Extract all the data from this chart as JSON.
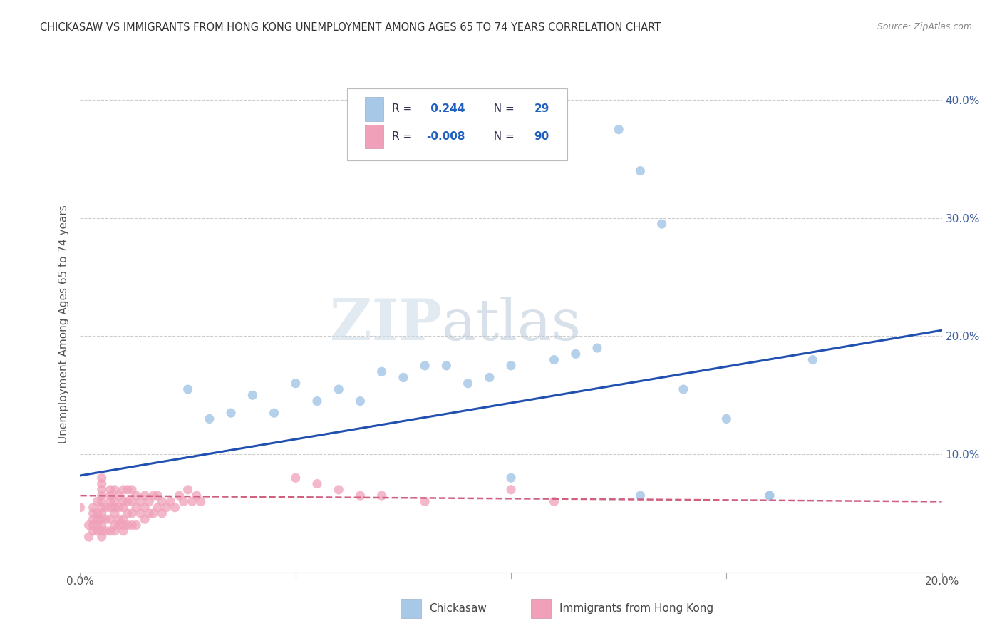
{
  "title": "CHICKASAW VS IMMIGRANTS FROM HONG KONG UNEMPLOYMENT AMONG AGES 65 TO 74 YEARS CORRELATION CHART",
  "source": "Source: ZipAtlas.com",
  "ylabel": "Unemployment Among Ages 65 to 74 years",
  "xlim": [
    0.0,
    0.2
  ],
  "ylim": [
    0.0,
    0.42
  ],
  "color_blue": "#a8c8e8",
  "color_pink": "#f0a0b8",
  "trend_blue": "#2050b0",
  "trend_pink": "#d06080",
  "watermark_zip": "ZIP",
  "watermark_atlas": "atlas",
  "legend_labels": [
    "Chickasaw",
    "Immigrants from Hong Kong"
  ],
  "chickasaw_x": [
    0.025,
    0.03,
    0.035,
    0.04,
    0.045,
    0.05,
    0.055,
    0.06,
    0.065,
    0.07,
    0.075,
    0.08,
    0.085,
    0.09,
    0.095,
    0.1,
    0.11,
    0.115,
    0.12,
    0.125,
    0.13,
    0.135,
    0.14,
    0.15,
    0.16,
    0.17,
    0.13,
    0.1,
    0.16
  ],
  "chickasaw_y": [
    0.155,
    0.13,
    0.135,
    0.15,
    0.135,
    0.16,
    0.145,
    0.155,
    0.145,
    0.17,
    0.165,
    0.175,
    0.175,
    0.16,
    0.165,
    0.175,
    0.18,
    0.185,
    0.19,
    0.375,
    0.34,
    0.295,
    0.155,
    0.13,
    0.065,
    0.18,
    0.065,
    0.08,
    0.065
  ],
  "hk_x": [
    0.0,
    0.002,
    0.002,
    0.003,
    0.003,
    0.003,
    0.003,
    0.003,
    0.004,
    0.004,
    0.004,
    0.004,
    0.004,
    0.005,
    0.005,
    0.005,
    0.005,
    0.005,
    0.005,
    0.005,
    0.005,
    0.005,
    0.005,
    0.005,
    0.006,
    0.006,
    0.006,
    0.007,
    0.007,
    0.007,
    0.007,
    0.007,
    0.007,
    0.008,
    0.008,
    0.008,
    0.008,
    0.008,
    0.008,
    0.009,
    0.009,
    0.009,
    0.009,
    0.01,
    0.01,
    0.01,
    0.01,
    0.01,
    0.01,
    0.011,
    0.011,
    0.011,
    0.011,
    0.012,
    0.012,
    0.012,
    0.012,
    0.013,
    0.013,
    0.013,
    0.014,
    0.014,
    0.015,
    0.015,
    0.015,
    0.016,
    0.016,
    0.017,
    0.017,
    0.018,
    0.018,
    0.019,
    0.019,
    0.02,
    0.021,
    0.022,
    0.023,
    0.024,
    0.025,
    0.026,
    0.027,
    0.028,
    0.05,
    0.055,
    0.06,
    0.065,
    0.07,
    0.08,
    0.1,
    0.11
  ],
  "hk_y": [
    0.055,
    0.03,
    0.04,
    0.035,
    0.04,
    0.045,
    0.05,
    0.055,
    0.035,
    0.04,
    0.045,
    0.05,
    0.06,
    0.03,
    0.035,
    0.04,
    0.045,
    0.05,
    0.055,
    0.06,
    0.065,
    0.07,
    0.075,
    0.08,
    0.035,
    0.045,
    0.055,
    0.035,
    0.045,
    0.055,
    0.06,
    0.065,
    0.07,
    0.035,
    0.04,
    0.05,
    0.055,
    0.06,
    0.07,
    0.04,
    0.045,
    0.055,
    0.065,
    0.035,
    0.04,
    0.045,
    0.055,
    0.06,
    0.07,
    0.04,
    0.05,
    0.06,
    0.07,
    0.04,
    0.05,
    0.06,
    0.07,
    0.04,
    0.055,
    0.065,
    0.05,
    0.06,
    0.045,
    0.055,
    0.065,
    0.05,
    0.06,
    0.05,
    0.065,
    0.055,
    0.065,
    0.05,
    0.06,
    0.055,
    0.06,
    0.055,
    0.065,
    0.06,
    0.07,
    0.06,
    0.065,
    0.06,
    0.08,
    0.075,
    0.07,
    0.065,
    0.065,
    0.06,
    0.07,
    0.06
  ],
  "trend_blue_x0": 0.0,
  "trend_blue_x1": 0.2,
  "trend_blue_y0": 0.082,
  "trend_blue_y1": 0.205,
  "trend_pink_x0": 0.0,
  "trend_pink_x1": 0.2,
  "trend_pink_y0": 0.065,
  "trend_pink_y1": 0.06
}
